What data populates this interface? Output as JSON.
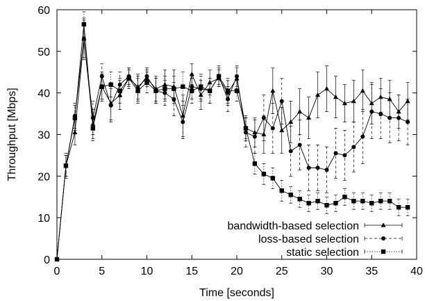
{
  "chart_data": {
    "type": "line",
    "xlabel": "Time [seconds]",
    "ylabel": "Throughput [Mbps]",
    "xlim": [
      0,
      40
    ],
    "ylim": [
      0,
      60
    ],
    "xticks": [
      0,
      5,
      10,
      15,
      20,
      25,
      30,
      35,
      40
    ],
    "yticks": [
      0,
      10,
      20,
      30,
      40,
      50,
      60
    ],
    "grid": false,
    "error_bars": true,
    "legend_position": "bottom-right",
    "x": [
      0,
      1,
      2,
      3,
      4,
      5,
      6,
      7,
      8,
      9,
      10,
      11,
      12,
      13,
      14,
      15,
      16,
      17,
      18,
      19,
      20,
      21,
      22,
      23,
      24,
      25,
      26,
      27,
      28,
      29,
      30,
      31,
      32,
      33,
      34,
      35,
      36,
      37,
      38,
      39
    ],
    "series": [
      {
        "name": "bandwidth-based selection",
        "marker": "triangle",
        "line_style": "solid",
        "values": [
          0,
          22.5,
          30.5,
          53.0,
          32.5,
          41.5,
          37.5,
          39.5,
          43.5,
          41.5,
          43.5,
          41.0,
          42.0,
          41.5,
          34.5,
          44.5,
          39.5,
          42.5,
          43.5,
          40.0,
          43.5,
          31.5,
          30.5,
          30.0,
          40.5,
          31.0,
          33.0,
          35.5,
          34.0,
          39.5,
          41.0,
          39.0,
          37.5,
          38.0,
          40.5,
          37.5,
          39.0,
          38.5,
          35.5,
          38.0
        ],
        "errors": [
          0,
          2.5,
          3.0,
          4.5,
          3.5,
          3.5,
          4.0,
          3.5,
          2.0,
          3.0,
          2.0,
          3.0,
          3.5,
          4.0,
          5.0,
          2.5,
          3.5,
          3.0,
          2.0,
          3.0,
          2.5,
          3.0,
          3.5,
          4.5,
          5.5,
          5.5,
          5.0,
          5.5,
          5.0,
          5.5,
          5.5,
          5.0,
          4.5,
          5.0,
          5.0,
          5.0,
          4.5,
          4.5,
          4.0,
          4.5
        ]
      },
      {
        "name": "loss-based selection",
        "marker": "circle",
        "line_style": "dashed",
        "values": [
          0,
          22.5,
          34.5,
          53.0,
          34.0,
          44.0,
          37.0,
          42.0,
          44.0,
          41.0,
          44.0,
          40.5,
          40.0,
          38.5,
          33.0,
          41.5,
          41.0,
          40.5,
          44.0,
          38.5,
          44.0,
          30.5,
          29.5,
          34.0,
          31.5,
          38.0,
          26.0,
          27.5,
          22.0,
          22.0,
          21.5,
          25.5,
          25.0,
          27.0,
          29.5,
          35.5,
          35.0,
          34.0,
          34.0,
          33.0
        ],
        "errors": [
          0,
          3.0,
          3.0,
          5.0,
          4.0,
          3.0,
          4.0,
          3.0,
          2.0,
          3.0,
          2.0,
          3.0,
          3.0,
          4.0,
          4.0,
          3.0,
          3.0,
          3.0,
          2.0,
          3.0,
          2.5,
          3.5,
          4.0,
          5.5,
          6.0,
          5.5,
          6.0,
          6.0,
          5.5,
          5.5,
          5.5,
          6.0,
          6.0,
          6.0,
          6.5,
          6.5,
          6.0,
          6.0,
          5.5,
          5.5
        ]
      },
      {
        "name": "static selection",
        "marker": "square",
        "line_style": "dotted",
        "values": [
          0,
          22.5,
          34.0,
          56.5,
          31.5,
          41.5,
          42.0,
          40.5,
          43.5,
          40.5,
          42.5,
          40.5,
          41.0,
          41.0,
          41.5,
          40.5,
          41.5,
          40.5,
          44.0,
          40.5,
          40.5,
          31.5,
          23.0,
          20.5,
          19.5,
          16.5,
          15.5,
          14.5,
          13.5,
          14.0,
          13.0,
          13.5,
          15.0,
          14.0,
          14.0,
          13.5,
          14.0,
          14.0,
          12.5,
          12.5
        ],
        "errors": [
          0,
          2.5,
          3.0,
          3.0,
          3.0,
          3.0,
          3.0,
          3.0,
          2.5,
          3.0,
          2.5,
          3.0,
          3.0,
          3.0,
          3.5,
          3.0,
          3.0,
          3.0,
          2.5,
          3.0,
          2.5,
          2.5,
          2.5,
          2.5,
          2.5,
          2.5,
          2.0,
          2.0,
          2.0,
          2.0,
          2.0,
          2.0,
          2.0,
          2.0,
          2.0,
          2.0,
          2.0,
          2.0,
          2.0,
          2.0
        ]
      }
    ]
  }
}
